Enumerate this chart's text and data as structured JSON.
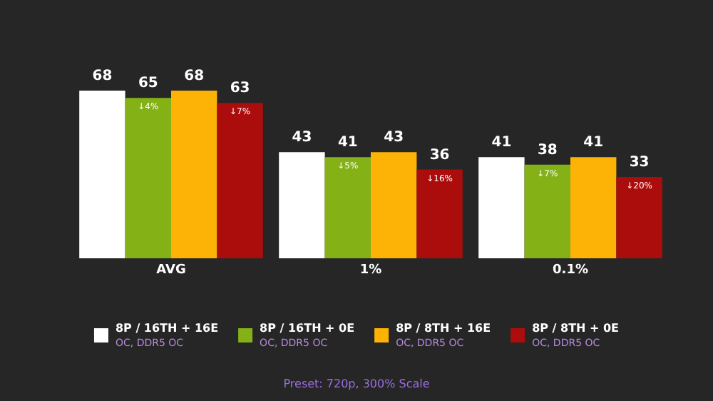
{
  "chart_data": {
    "type": "bar",
    "categories": [
      "AVG",
      "1%",
      "0.1%"
    ],
    "series": [
      {
        "name": "8P / 16TH + 16E\nOC, DDR5 OC",
        "color": "#ffffff",
        "values": [
          68,
          43,
          41
        ]
      },
      {
        "name": "8P / 16TH + 0E\nOC, DDR5 OC",
        "color": "#84b116",
        "values": [
          65,
          41,
          38
        ]
      },
      {
        "name": "8P / 8TH + 16E\nOC, DDR5 OC",
        "color": "#fdb306",
        "values": [
          68,
          43,
          41
        ]
      },
      {
        "name": "8P / 8TH + 0E\nOC, DDR5 OC",
        "color": "#ab0d0d",
        "values": [
          63,
          36,
          33
        ]
      }
    ],
    "data_labels": true,
    "legend": "bottom",
    "grid": false,
    "annotations": [
      {
        "text": "↓4%",
        "x": "AVG",
        "y": 65
      },
      {
        "text": "↓7%",
        "y": 63
      },
      {
        "text": "↓5%",
        "x": "1%",
        "y": 41
      },
      {
        "text": "↓16%",
        "y": 36
      },
      {
        "text": "↓7%",
        "x": "0.1%",
        "y": 38
      },
      {
        "text": "↓20%",
        "y": 33
      },
      "Preset: 720p, 300% Scale"
    ]
  }
}
